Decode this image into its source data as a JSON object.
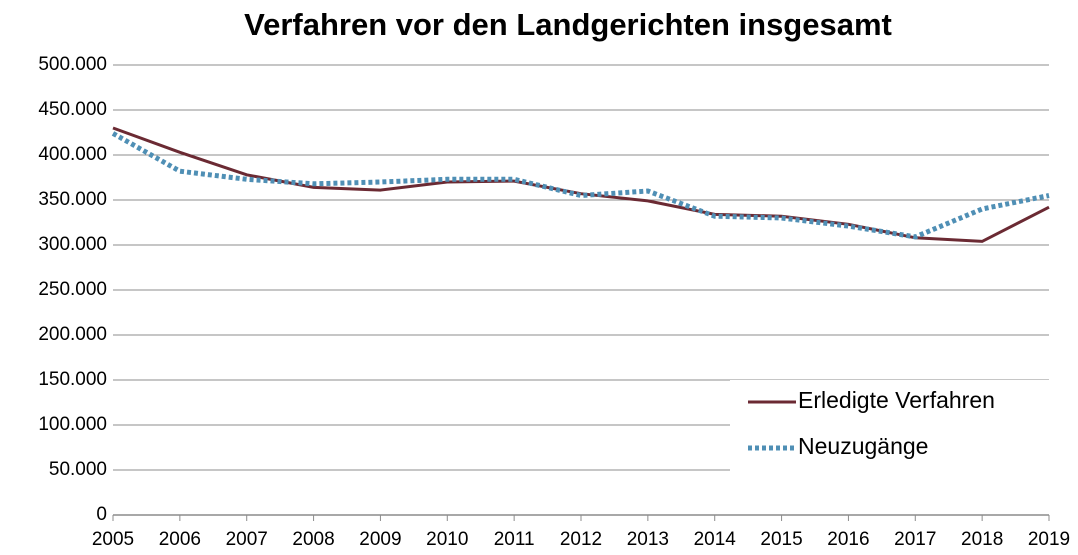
{
  "chart_data": {
    "type": "line",
    "title": "Verfahren vor den Landgerichten insgesamt",
    "x": [
      2005,
      2006,
      2007,
      2008,
      2009,
      2010,
      2011,
      2012,
      2013,
      2014,
      2015,
      2016,
      2017,
      2018,
      2019
    ],
    "series": [
      {
        "name": "Erledigte Verfahren",
        "color": "#6b2a33",
        "style": "solid",
        "values": [
          430000,
          403000,
          378000,
          364000,
          361000,
          370000,
          371000,
          357000,
          349000,
          334000,
          332000,
          323000,
          308000,
          304000,
          342000
        ]
      },
      {
        "name": "Neuzugänge",
        "color": "#4f8fb5",
        "style": "dotted",
        "values": [
          424000,
          382000,
          373000,
          368000,
          370000,
          373000,
          373000,
          355000,
          360000,
          332000,
          330000,
          321000,
          309000,
          340000,
          355000
        ]
      }
    ],
    "xlim": [
      2005,
      2019
    ],
    "xticks": [
      2005,
      2006,
      2007,
      2008,
      2009,
      2010,
      2011,
      2012,
      2013,
      2014,
      2015,
      2016,
      2017,
      2018,
      2019
    ],
    "ylim": [
      0,
      500000
    ],
    "yticks": [
      0,
      {
        "value": 50000,
        "label": "50.000"
      },
      {
        "value": 100000,
        "label": "100.000"
      },
      {
        "value": 150000,
        "label": "150.000"
      },
      {
        "value": 200000,
        "label": "200.000"
      },
      {
        "value": 250000,
        "label": "250.000"
      },
      {
        "value": 300000,
        "label": "300.000"
      },
      {
        "value": 350000,
        "label": "350.000"
      },
      {
        "value": 400000,
        "label": "400.000"
      },
      {
        "value": 450000,
        "label": "450.000"
      },
      {
        "value": 500000,
        "label": "500.000"
      }
    ],
    "grid": true,
    "legend": "lower right"
  }
}
